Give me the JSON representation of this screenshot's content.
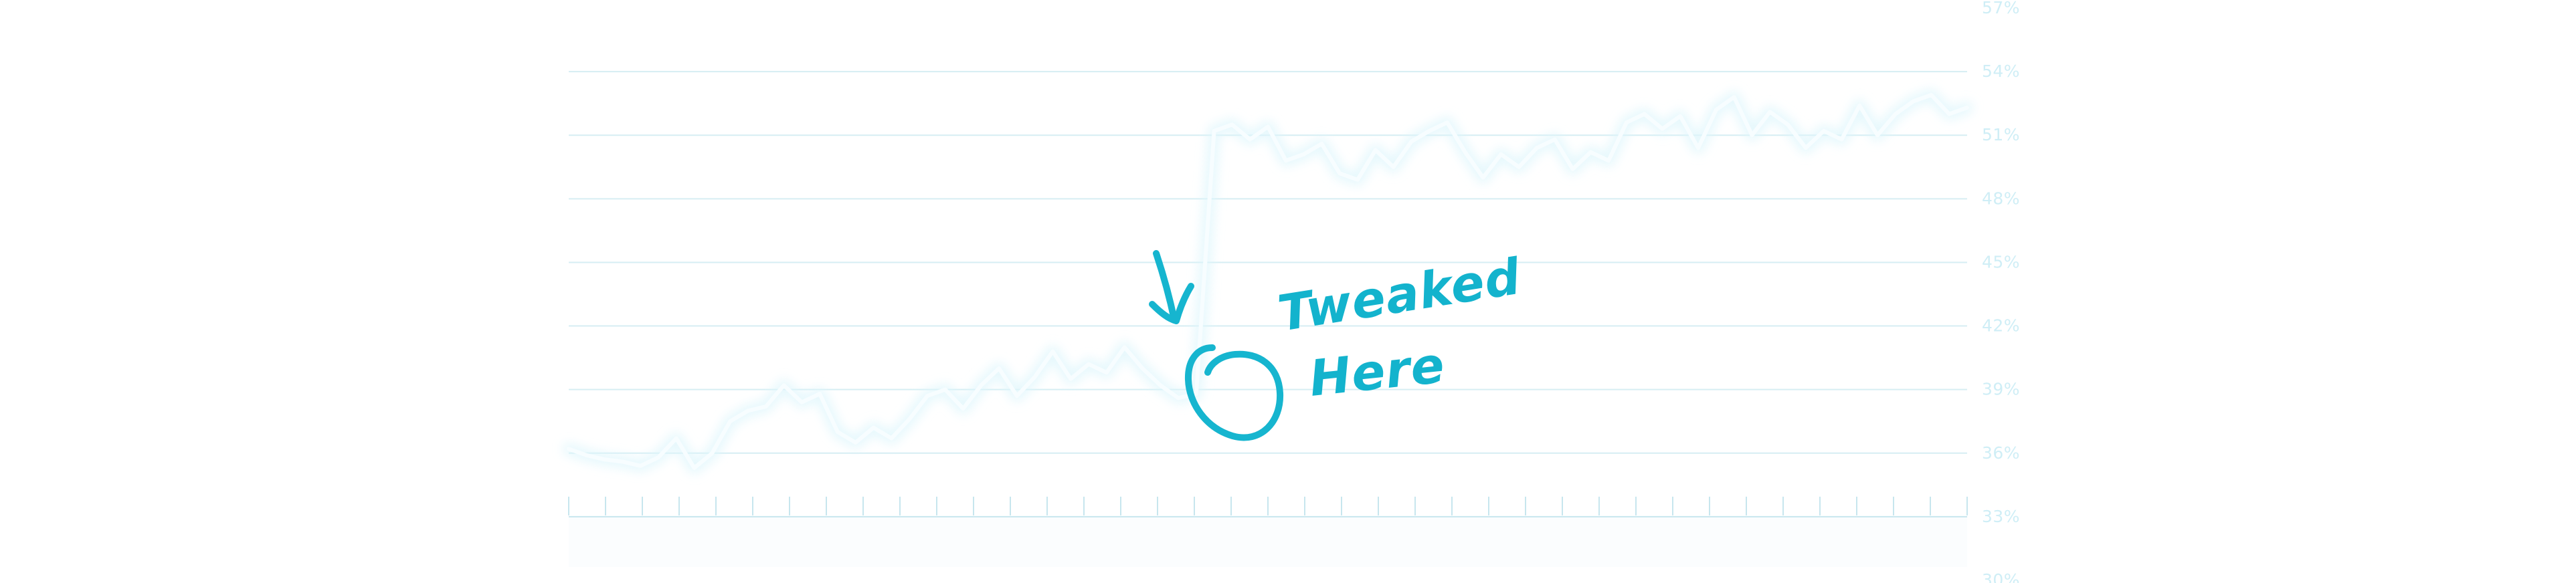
{
  "chart_data": {
    "type": "line",
    "title": "",
    "xlabel": "",
    "ylabel": "",
    "y_axis_position": "right",
    "grid": true,
    "legend": "none",
    "ylim": [
      30,
      57
    ],
    "y_ticks": [
      "57%",
      "54%",
      "51%",
      "48%",
      "45%",
      "42%",
      "39%",
      "36%",
      "33%",
      "30%"
    ],
    "x": [
      1,
      2,
      3,
      4,
      5,
      6,
      7,
      8,
      9,
      10,
      11,
      12,
      13,
      14,
      15,
      16,
      17,
      18,
      19,
      20,
      21,
      22,
      23,
      24,
      25,
      26,
      27,
      28,
      29,
      30,
      31,
      32,
      33,
      34,
      35,
      36,
      37,
      38,
      39,
      40,
      41,
      42,
      43,
      44,
      45,
      46,
      47,
      48,
      49,
      50,
      51,
      52,
      53,
      54,
      55,
      56,
      57,
      58,
      59,
      60,
      61,
      62,
      63,
      64,
      65,
      66,
      67,
      68,
      69,
      70,
      71,
      72,
      73,
      74,
      75,
      76,
      77,
      78,
      79
    ],
    "series": [
      {
        "color": "#ffffff",
        "values": [
          36.2,
          35.9,
          35.7,
          35.6,
          35.4,
          35.8,
          36.7,
          35.3,
          36.0,
          37.5,
          38.0,
          38.2,
          39.2,
          38.4,
          38.8,
          37.0,
          36.5,
          37.2,
          36.7,
          37.6,
          38.7,
          39.0,
          38.1,
          39.2,
          40.0,
          38.7,
          39.6,
          40.8,
          39.5,
          40.2,
          39.8,
          41.0,
          40.0,
          39.2,
          38.6,
          38.8,
          51.2,
          51.5,
          50.8,
          51.4,
          49.8,
          50.1,
          50.6,
          49.2,
          48.9,
          50.3,
          49.5,
          50.7,
          51.2,
          51.6,
          50.2,
          49.0,
          50.1,
          49.5,
          50.4,
          50.8,
          49.4,
          50.2,
          49.8,
          51.6,
          52.0,
          51.3,
          51.9,
          50.4,
          52.2,
          52.8,
          51.0,
          52.1,
          51.5,
          50.4,
          51.2,
          50.8,
          52.4,
          51.0,
          52.0,
          52.6,
          52.9,
          52.0,
          52.3
        ]
      }
    ],
    "annotations": [
      {
        "text_lines": [
          "Tweaked",
          "Here"
        ],
        "x": 37,
        "y": 38.8
      }
    ]
  },
  "icons": {
    "annotation_arrow": "hand-drawn-arrow-icon",
    "annotation_circle": "hand-drawn-circle-icon"
  },
  "colors": {
    "annotation": "#16b5cf",
    "grid": "#d6eef3",
    "series": "#ffffff"
  }
}
